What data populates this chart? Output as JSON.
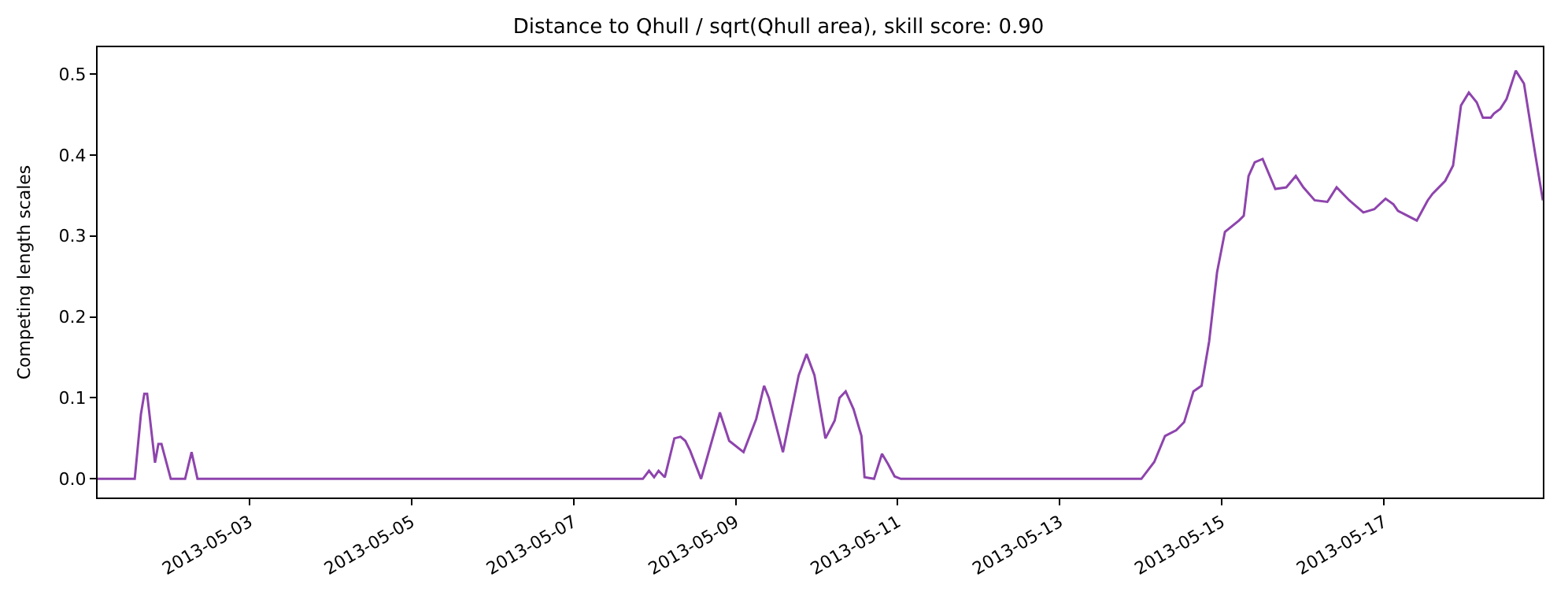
{
  "chart_data": {
    "type": "line",
    "title": "Distance to Qhull / sqrt(Qhull area), skill score: 0.90",
    "ylabel": "Competing length scales",
    "x": [
      "2013-05-01T03:00",
      "2013-05-01T14:00",
      "2013-05-01T15:50",
      "2013-05-01T16:50",
      "2013-05-01T17:40",
      "2013-05-01T20:00",
      "2013-05-01T21:00",
      "2013-05-01T21:55",
      "2013-05-02T00:40",
      "2013-05-02T04:55",
      "2013-05-02T06:50",
      "2013-05-02T08:35",
      "2013-05-07T20:30",
      "2013-05-07T22:20",
      "2013-05-07T23:50",
      "2013-05-08T01:10",
      "2013-05-08T03:00",
      "2013-05-08T05:50",
      "2013-05-08T07:40",
      "2013-05-08T09:05",
      "2013-05-08T10:30",
      "2013-05-08T13:45",
      "2013-05-08T19:20",
      "2013-05-08T22:05",
      "2013-05-09T02:20",
      "2013-05-09T06:05",
      "2013-05-09T08:25",
      "2013-05-09T09:50",
      "2013-05-09T14:00",
      "2013-05-09T18:40",
      "2013-05-09T21:00",
      "2013-05-09T23:20",
      "2013-05-10T02:35",
      "2013-05-10T05:20",
      "2013-05-10T06:45",
      "2013-05-10T08:35",
      "2013-05-10T10:55",
      "2013-05-10T13:15",
      "2013-05-10T14:10",
      "2013-05-10T17:00",
      "2013-05-10T19:20",
      "2013-05-10T21:10",
      "2013-05-10T23:05",
      "2013-05-11T00:55",
      "2013-05-14T00:10",
      "2013-05-14T04:00",
      "2013-05-14T07:10",
      "2013-05-14T10:30",
      "2013-05-14T12:50",
      "2013-05-14T15:35",
      "2013-05-14T18:00",
      "2013-05-14T20:15",
      "2013-05-14T22:35",
      "2013-05-15T00:55",
      "2013-05-15T05:05",
      "2013-05-15T06:30",
      "2013-05-15T07:55",
      "2013-05-15T09:45",
      "2013-05-15T12:05",
      "2013-05-15T15:50",
      "2013-05-15T19:05",
      "2013-05-15T21:55",
      "2013-05-16T00:10",
      "2013-05-16T03:30",
      "2013-05-16T07:15",
      "2013-05-16T10:00",
      "2013-05-16T13:45",
      "2013-05-16T17:55",
      "2013-05-16T21:10",
      "2013-05-17T00:30",
      "2013-05-17T02:50",
      "2013-05-17T04:10",
      "2013-05-17T06:00",
      "2013-05-17T09:45",
      "2013-05-17T13:00",
      "2013-05-17T14:25",
      "2013-05-17T18:10",
      "2013-05-17T20:30",
      "2013-05-17T22:50",
      "2013-05-18T01:10",
      "2013-05-18T03:30",
      "2013-05-18T05:20",
      "2013-05-18T07:40",
      "2013-05-18T08:35",
      "2013-05-18T10:30",
      "2013-05-18T12:20",
      "2013-05-18T15:05",
      "2013-05-18T17:30",
      "2013-05-18T20:45",
      "2013-05-18T23:05"
    ],
    "series": [
      {
        "color": "#8e44ad",
        "values": [
          0,
          0,
          0.08,
          0.105,
          0.105,
          0.02,
          0.043,
          0.043,
          0,
          0,
          0.033,
          0,
          0,
          0.01,
          0.002,
          0.01,
          0.002,
          0.05,
          0.052,
          0.047,
          0.035,
          0,
          0.082,
          0.047,
          0.033,
          0.074,
          0.115,
          0.1,
          0.033,
          0.128,
          0.154,
          0.128,
          0.05,
          0.072,
          0.1,
          0.108,
          0.086,
          0.053,
          0.002,
          0,
          0.031,
          0.018,
          0.003,
          0,
          0,
          0.021,
          0.053,
          0.06,
          0.07,
          0.108,
          0.115,
          0.17,
          0.255,
          0.305,
          0.319,
          0.325,
          0.374,
          0.391,
          0.395,
          0.358,
          0.36,
          0.374,
          0.36,
          0.344,
          0.342,
          0.36,
          0.344,
          0.329,
          0.333,
          0.346,
          0.339,
          0.331,
          0.327,
          0.319,
          0.344,
          0.352,
          0.368,
          0.387,
          0.461,
          0.477,
          0.465,
          0.446,
          0.446,
          0.451,
          0.457,
          0.469,
          0.504,
          0.488,
          0.403,
          0.344
        ]
      }
    ],
    "xlim": [
      "2013-05-01T03:00",
      "2013-05-18T23:05"
    ],
    "xticks": [
      "2013-05-03",
      "2013-05-05",
      "2013-05-07",
      "2013-05-09",
      "2013-05-11",
      "2013-05-13",
      "2013-05-15",
      "2013-05-17"
    ],
    "ylim": [
      -0.023,
      0.533
    ],
    "yticks": [
      {
        "value": 0,
        "label": "0.0"
      },
      {
        "value": 0.1,
        "label": "0.1"
      },
      {
        "value": 0.2,
        "label": "0.2"
      },
      {
        "value": 0.3,
        "label": "0.3"
      },
      {
        "value": 0.4,
        "label": "0.4"
      },
      {
        "value": 0.5,
        "label": "0.5"
      }
    ],
    "marker": "none",
    "line_style": "solid"
  }
}
